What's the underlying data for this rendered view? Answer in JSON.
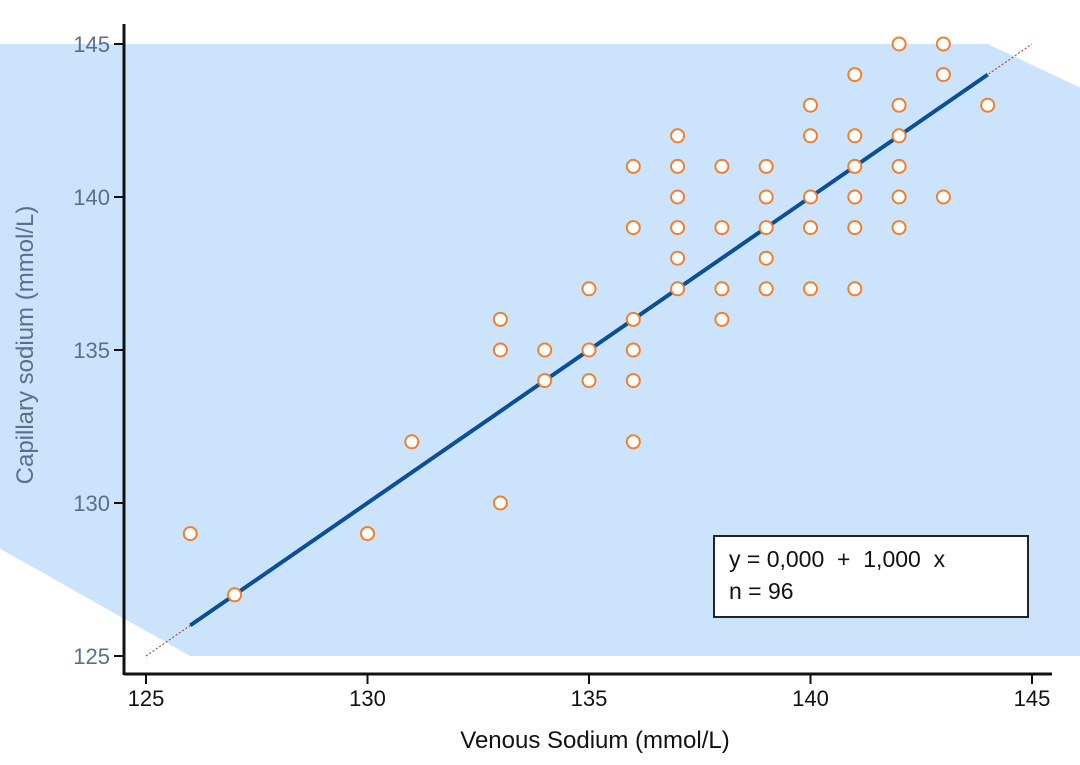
{
  "chart_data": {
    "type": "scatter",
    "xlabel": "Venous Sodium (mmol/L)",
    "ylabel": "Capillary sodium (mmol/L)",
    "xlim": [
      125,
      145
    ],
    "ylim": [
      125,
      145
    ],
    "xticks": [
      "125",
      "130",
      "135",
      "140",
      "145"
    ],
    "yticks": [
      "125",
      "130",
      "135",
      "140",
      "145"
    ],
    "grid": false,
    "colors": {
      "points": "#f07f2e",
      "regression_line": "#0b4f96",
      "identity_line": "#b04a52",
      "band": "#cce4fb",
      "axis": "#111111"
    },
    "points": [
      {
        "x": 126,
        "y": 129
      },
      {
        "x": 127,
        "y": 127
      },
      {
        "x": 130,
        "y": 129
      },
      {
        "x": 131,
        "y": 132
      },
      {
        "x": 133,
        "y": 136
      },
      {
        "x": 133,
        "y": 135
      },
      {
        "x": 133,
        "y": 130
      },
      {
        "x": 134,
        "y": 135
      },
      {
        "x": 134,
        "y": 134
      },
      {
        "x": 135,
        "y": 137
      },
      {
        "x": 135,
        "y": 135
      },
      {
        "x": 135,
        "y": 134
      },
      {
        "x": 136,
        "y": 141
      },
      {
        "x": 136,
        "y": 139
      },
      {
        "x": 136,
        "y": 136
      },
      {
        "x": 136,
        "y": 135
      },
      {
        "x": 136,
        "y": 134
      },
      {
        "x": 136,
        "y": 132
      },
      {
        "x": 137,
        "y": 142
      },
      {
        "x": 137,
        "y": 141
      },
      {
        "x": 137,
        "y": 140
      },
      {
        "x": 137,
        "y": 139
      },
      {
        "x": 137,
        "y": 138
      },
      {
        "x": 137,
        "y": 137
      },
      {
        "x": 138,
        "y": 141
      },
      {
        "x": 138,
        "y": 139
      },
      {
        "x": 138,
        "y": 137
      },
      {
        "x": 138,
        "y": 136
      },
      {
        "x": 139,
        "y": 141
      },
      {
        "x": 139,
        "y": 140
      },
      {
        "x": 139,
        "y": 139
      },
      {
        "x": 139,
        "y": 138
      },
      {
        "x": 139,
        "y": 137
      },
      {
        "x": 140,
        "y": 143
      },
      {
        "x": 140,
        "y": 142
      },
      {
        "x": 140,
        "y": 140
      },
      {
        "x": 140,
        "y": 139
      },
      {
        "x": 140,
        "y": 137
      },
      {
        "x": 141,
        "y": 144
      },
      {
        "x": 141,
        "y": 142
      },
      {
        "x": 141,
        "y": 141
      },
      {
        "x": 141,
        "y": 140
      },
      {
        "x": 141,
        "y": 139
      },
      {
        "x": 141,
        "y": 137
      },
      {
        "x": 142,
        "y": 145
      },
      {
        "x": 142,
        "y": 143
      },
      {
        "x": 142,
        "y": 142
      },
      {
        "x": 142,
        "y": 141
      },
      {
        "x": 142,
        "y": 140
      },
      {
        "x": 142,
        "y": 139
      },
      {
        "x": 143,
        "y": 145
      },
      {
        "x": 143,
        "y": 144
      },
      {
        "x": 143,
        "y": 140
      },
      {
        "x": 144,
        "y": 143
      }
    ],
    "regression": {
      "intercept": 0.0,
      "slope": 1.0,
      "x_range": [
        126,
        144
      ]
    },
    "identity_line": {
      "x_range": [
        125,
        145
      ]
    },
    "confidence_band": {
      "polygon": [
        {
          "x": 120,
          "y": 145
        },
        {
          "x": 144,
          "y": 145
        },
        {
          "x": 146.2,
          "y": 143.5
        },
        {
          "x": 146.2,
          "y": 125
        },
        {
          "x": 126,
          "y": 125
        },
        {
          "x": 120,
          "y": 129.9
        }
      ]
    },
    "annotation": {
      "equation": "y = 0,000  +  1,000  x",
      "n": "n = 96"
    }
  }
}
